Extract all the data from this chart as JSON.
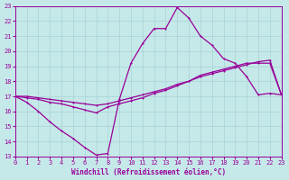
{
  "xlabel": "Windchill (Refroidissement éolien,°C)",
  "bg_color": "#c5e8e8",
  "grid_color": "#a8d4d4",
  "line_color": "#990099",
  "xlim": [
    0,
    23
  ],
  "ylim": [
    13,
    23
  ],
  "xticks": [
    0,
    1,
    2,
    3,
    4,
    5,
    6,
    7,
    8,
    9,
    10,
    11,
    12,
    13,
    14,
    15,
    16,
    17,
    18,
    19,
    20,
    21,
    22,
    23
  ],
  "yticks": [
    13,
    14,
    15,
    16,
    17,
    18,
    19,
    20,
    21,
    22,
    23
  ],
  "line1_x": [
    0,
    1,
    2,
    3,
    4,
    5,
    6,
    7,
    8,
    9,
    10,
    11,
    12,
    13,
    14,
    15,
    16,
    17,
    18,
    19,
    20,
    21,
    22,
    23
  ],
  "line1_y": [
    17.0,
    16.6,
    16.0,
    15.3,
    14.7,
    14.2,
    13.6,
    13.1,
    13.2,
    16.8,
    19.2,
    20.5,
    21.5,
    21.5,
    22.9,
    22.2,
    21.0,
    20.4,
    19.5,
    19.2,
    18.3,
    17.1,
    17.2,
    17.1
  ],
  "line2_x": [
    0,
    1,
    2,
    3,
    4,
    5,
    6,
    7,
    8,
    9,
    10,
    11,
    12,
    13,
    14,
    15,
    16,
    17,
    18,
    19,
    20,
    21,
    22,
    23
  ],
  "line2_y": [
    17.0,
    16.9,
    16.8,
    16.6,
    16.5,
    16.3,
    16.1,
    15.9,
    16.3,
    16.5,
    16.7,
    16.9,
    17.2,
    17.4,
    17.7,
    18.0,
    18.4,
    18.6,
    18.8,
    19.0,
    19.2,
    19.2,
    19.2,
    17.1
  ],
  "line3_x": [
    0,
    1,
    2,
    3,
    4,
    5,
    6,
    7,
    8,
    9,
    10,
    11,
    12,
    13,
    14,
    15,
    16,
    17,
    18,
    19,
    20,
    21,
    22,
    23
  ],
  "line3_y": [
    17.0,
    17.0,
    16.9,
    16.8,
    16.7,
    16.6,
    16.5,
    16.4,
    16.5,
    16.7,
    16.9,
    17.1,
    17.3,
    17.5,
    17.8,
    18.0,
    18.3,
    18.5,
    18.7,
    18.9,
    19.1,
    19.3,
    19.4,
    17.1
  ]
}
